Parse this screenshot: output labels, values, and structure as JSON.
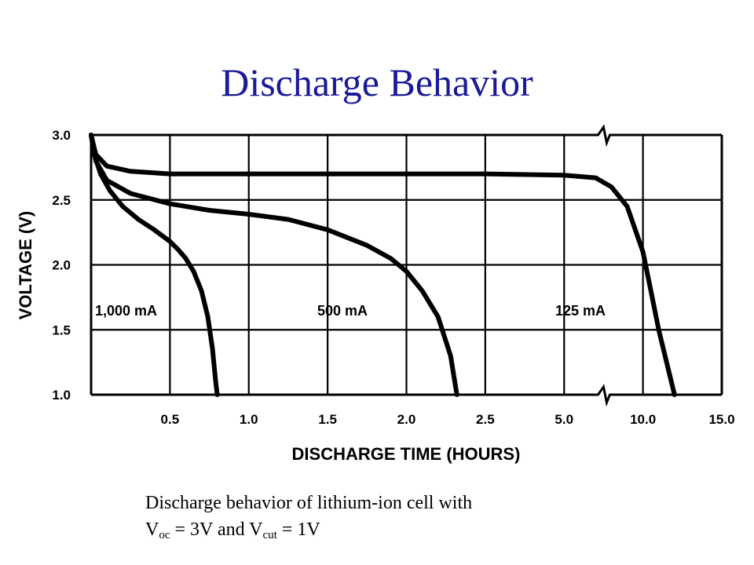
{
  "slide": {
    "title": "Discharge Behavior"
  },
  "caption": {
    "line1": "Discharge behavior of lithium-ion cell with",
    "voc_main": "V",
    "voc_sub": "oc",
    "voc_rest": " = 3V and V",
    "vcut_sub": "cut",
    "vcut_rest": " = 1V"
  },
  "chart_data": {
    "type": "line",
    "title": "",
    "xlabel": "DISCHARGE TIME (HOURS)",
    "ylabel": "VOLTAGE (V)",
    "ylim": [
      1.0,
      3.0
    ],
    "grid": true,
    "x_scale": "broken: 0-2.5 linear, break after 2.5, then 5.0-15.0",
    "x_ticks": [
      "0.5",
      "1.0",
      "1.5",
      "2.0",
      "2.5",
      "5.0",
      "10.0",
      "15.0"
    ],
    "y_ticks": [
      "1.0",
      "1.5",
      "2.0",
      "2.5",
      "3.0"
    ],
    "series": [
      {
        "name": "1,000 mA",
        "points": [
          [
            0,
            3.0
          ],
          [
            0.02,
            2.85
          ],
          [
            0.06,
            2.7
          ],
          [
            0.12,
            2.57
          ],
          [
            0.2,
            2.45
          ],
          [
            0.3,
            2.35
          ],
          [
            0.4,
            2.27
          ],
          [
            0.5,
            2.18
          ],
          [
            0.55,
            2.12
          ],
          [
            0.6,
            2.05
          ],
          [
            0.65,
            1.95
          ],
          [
            0.7,
            1.8
          ],
          [
            0.74,
            1.6
          ],
          [
            0.77,
            1.35
          ],
          [
            0.79,
            1.1
          ],
          [
            0.8,
            1.0
          ]
        ]
      },
      {
        "name": "500 mA",
        "points": [
          [
            0,
            3.0
          ],
          [
            0.03,
            2.8
          ],
          [
            0.1,
            2.65
          ],
          [
            0.25,
            2.55
          ],
          [
            0.5,
            2.47
          ],
          [
            0.75,
            2.42
          ],
          [
            1.0,
            2.39
          ],
          [
            1.25,
            2.35
          ],
          [
            1.5,
            2.27
          ],
          [
            1.75,
            2.15
          ],
          [
            1.9,
            2.05
          ],
          [
            2.0,
            1.95
          ],
          [
            2.1,
            1.8
          ],
          [
            2.2,
            1.6
          ],
          [
            2.28,
            1.3
          ],
          [
            2.32,
            1.0
          ]
        ]
      },
      {
        "name": "125 mA",
        "points": [
          [
            0,
            3.0
          ],
          [
            0.03,
            2.85
          ],
          [
            0.1,
            2.76
          ],
          [
            0.25,
            2.72
          ],
          [
            0.5,
            2.7
          ],
          [
            1.0,
            2.7
          ],
          [
            1.5,
            2.7
          ],
          [
            2.0,
            2.7
          ],
          [
            2.5,
            2.7
          ],
          [
            5.0,
            2.69
          ],
          [
            7.0,
            2.67
          ],
          [
            8.0,
            2.6
          ],
          [
            9.0,
            2.45
          ],
          [
            10.0,
            2.1
          ],
          [
            10.5,
            1.8
          ],
          [
            11.0,
            1.5
          ],
          [
            11.5,
            1.25
          ],
          [
            12.0,
            1.0
          ]
        ]
      }
    ]
  }
}
